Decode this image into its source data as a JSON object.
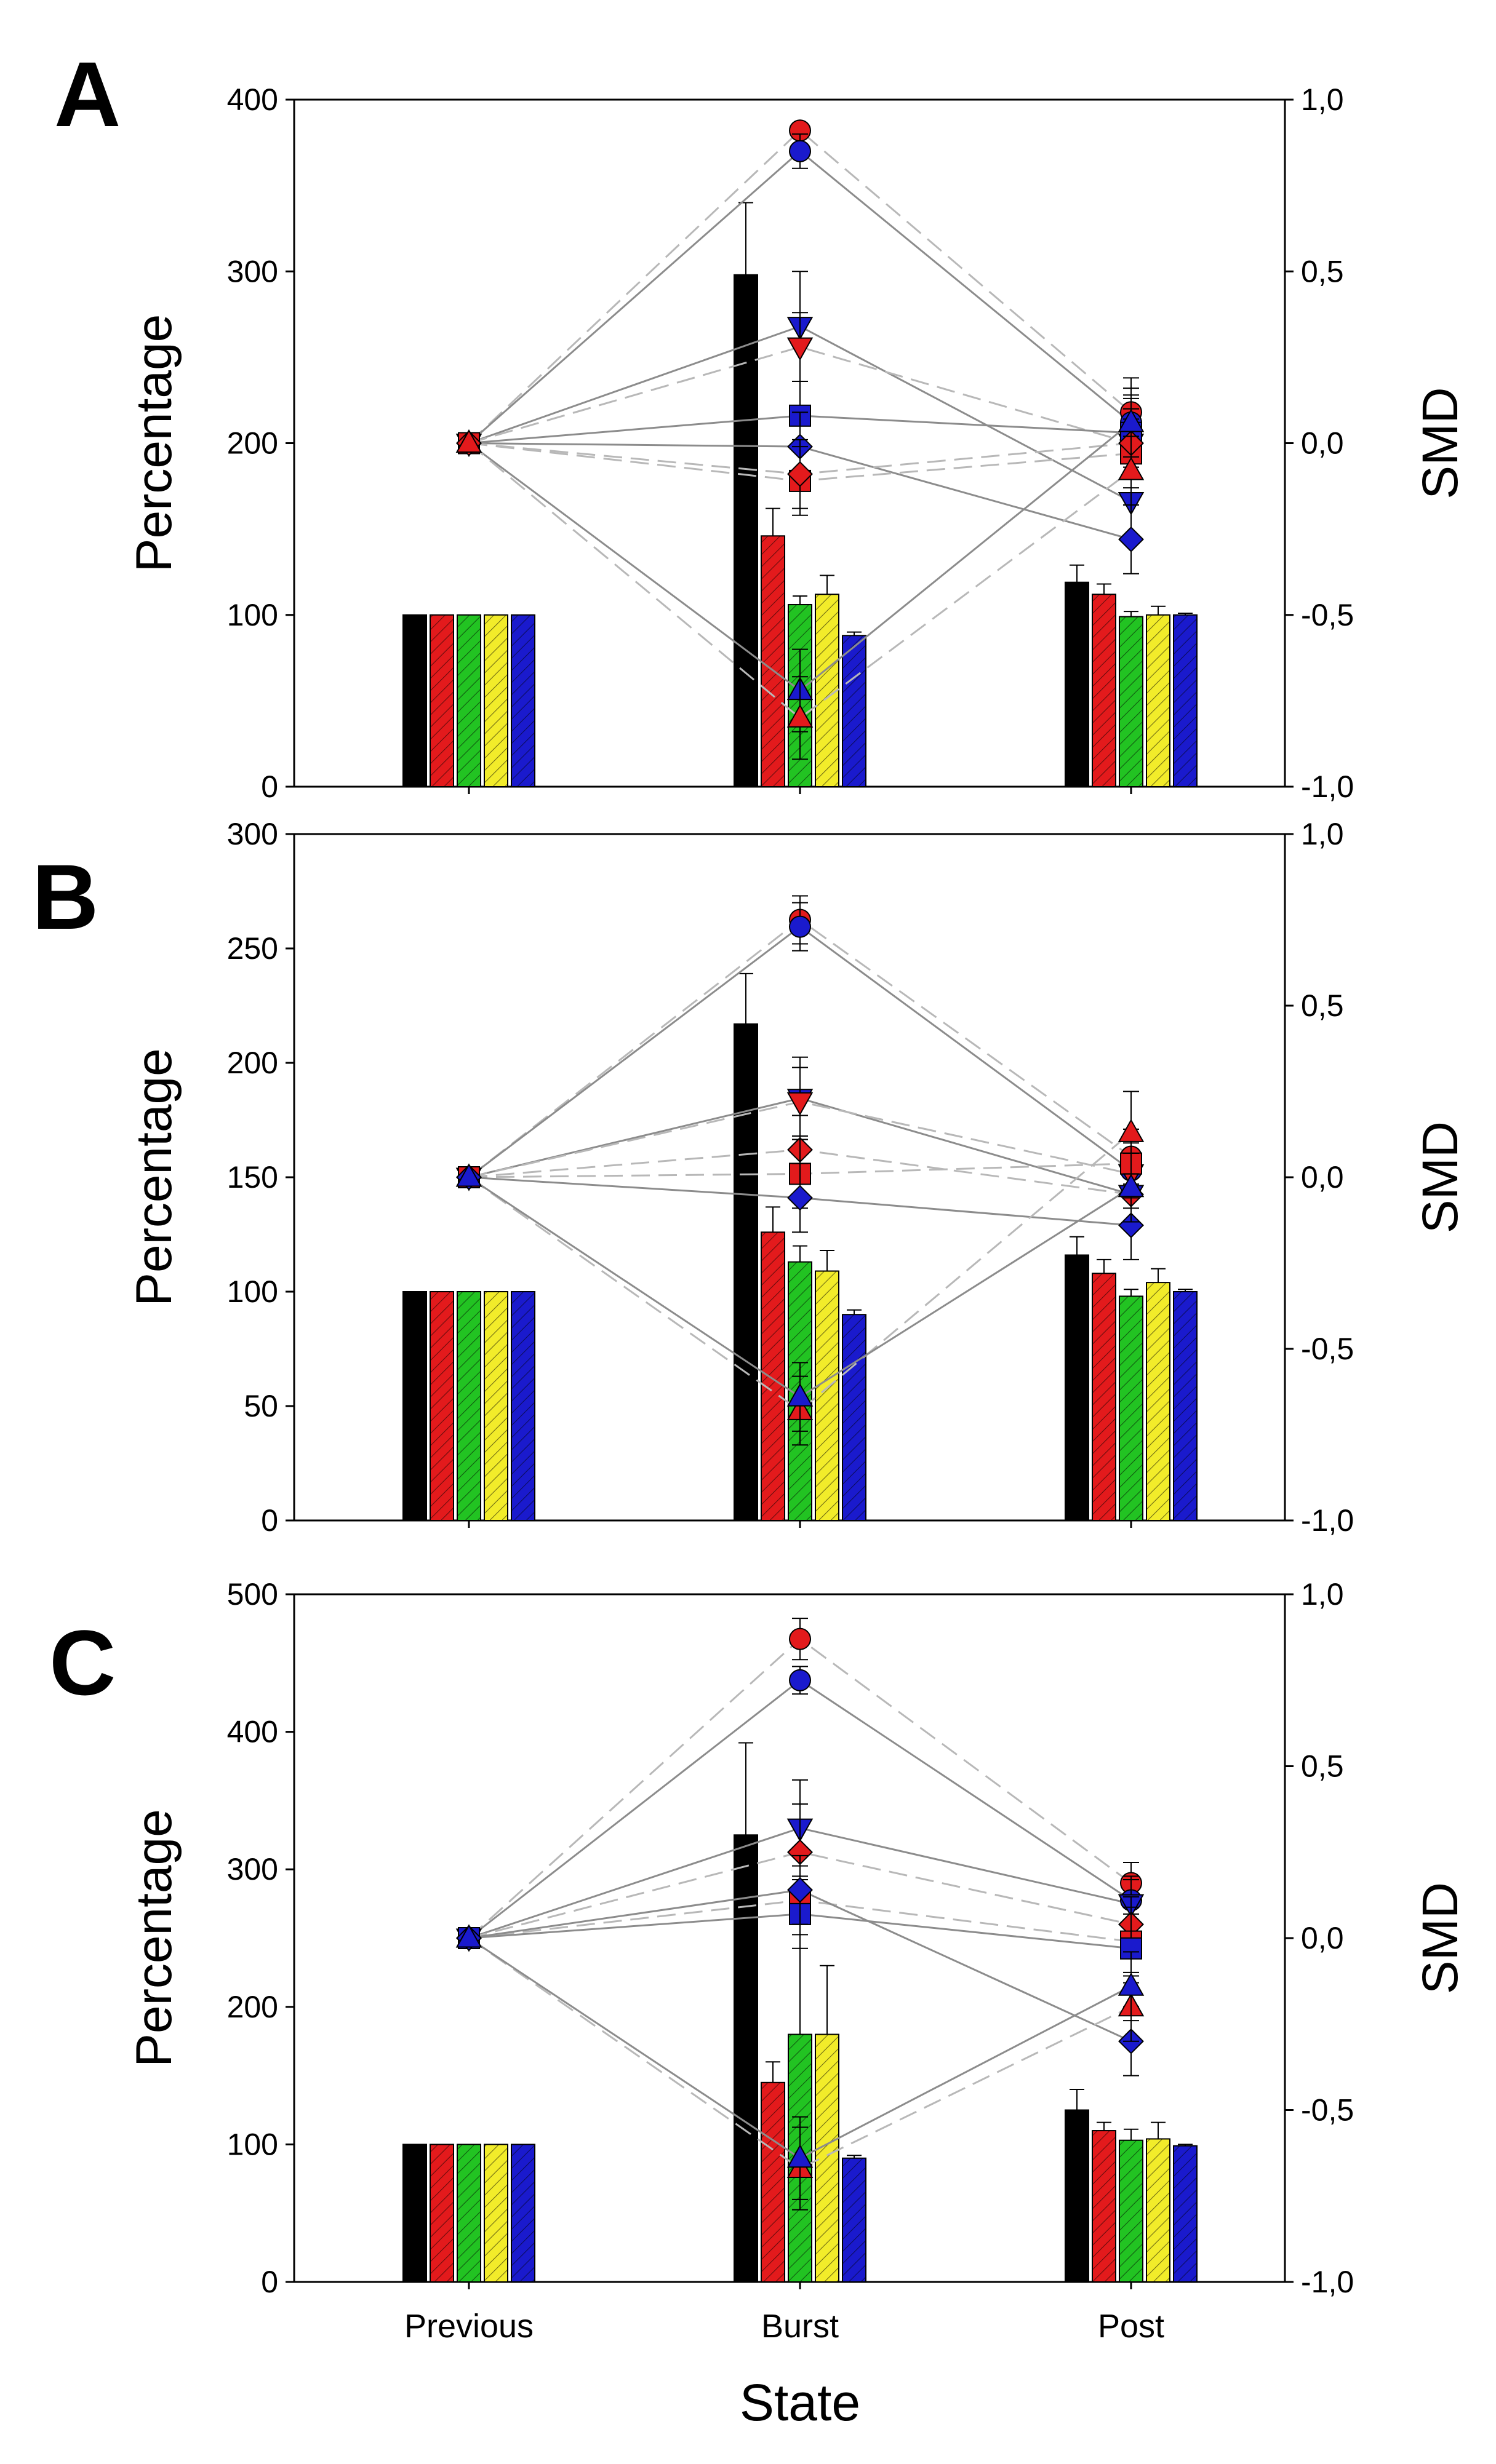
{
  "figure": {
    "x_title": "State",
    "categories": [
      "Previous",
      "Burst",
      "Post"
    ],
    "left_axis_title": "Percentage",
    "right_axis_title": "SMD",
    "bar_colors": [
      "#000000",
      "#e31a1c",
      "#22c322",
      "#f2ec2a",
      "#1a1acd"
    ]
  },
  "chart_data": [
    {
      "type": "bar",
      "panel": "A",
      "categories": [
        "Previous",
        "Burst",
        "Post"
      ],
      "ylabel": "Percentage",
      "ylim": [
        0,
        400
      ],
      "yticks": [
        "0",
        "100",
        "200",
        "300",
        "400"
      ],
      "y2label": "SMD",
      "y2lim": [
        -1.0,
        1.0
      ],
      "y2ticks": [
        "-1,0",
        "-0,5",
        "0,0",
        "0,5",
        "1,0"
      ],
      "series": [
        {
          "color": "#000000",
          "values": [
            100,
            298,
            119
          ],
          "errors": [
            0,
            42,
            10
          ]
        },
        {
          "color": "#e31a1c",
          "values": [
            100,
            146,
            112
          ],
          "errors": [
            0,
            16,
            6
          ]
        },
        {
          "color": "#22c322",
          "values": [
            100,
            106,
            99
          ],
          "errors": [
            0,
            5,
            3
          ]
        },
        {
          "color": "#f2ec2a",
          "values": [
            100,
            112,
            100
          ],
          "errors": [
            0,
            11,
            5
          ]
        },
        {
          "color": "#1a1acd",
          "values": [
            100,
            88,
            100
          ],
          "errors": [
            0,
            2,
            1
          ]
        }
      ],
      "smd_lines": [
        {
          "marker": "circle",
          "color": "#e31a1c",
          "dashed": true,
          "values": [
            0.0,
            0.91,
            0.09
          ],
          "errors": [
            0,
            0.02,
            0.1
          ]
        },
        {
          "marker": "circle",
          "color": "#1a1acd",
          "dashed": false,
          "values": [
            0.0,
            0.85,
            0.06
          ],
          "errors": [
            0,
            0.05,
            0.08
          ]
        },
        {
          "marker": "triangle-down",
          "color": "#1a1acd",
          "dashed": false,
          "values": [
            0.0,
            0.34,
            -0.17
          ],
          "errors": [
            0,
            0.16,
            0.1
          ]
        },
        {
          "marker": "triangle-down",
          "color": "#e31a1c",
          "dashed": true,
          "values": [
            0.0,
            0.28,
            0.0
          ],
          "errors": [
            0,
            0.1,
            0.1
          ]
        },
        {
          "marker": "square",
          "color": "#1a1acd",
          "dashed": false,
          "values": [
            0.0,
            0.08,
            0.03
          ],
          "errors": [
            0,
            0.1,
            0.1
          ]
        },
        {
          "marker": "diamond",
          "color": "#1a1acd",
          "dashed": false,
          "values": [
            0.0,
            -0.01,
            -0.28
          ],
          "errors": [
            0,
            0.1,
            0.1
          ]
        },
        {
          "marker": "square",
          "color": "#e31a1c",
          "dashed": true,
          "values": [
            0.0,
            -0.11,
            -0.03
          ],
          "errors": [
            0,
            0.1,
            0.1
          ]
        },
        {
          "marker": "diamond",
          "color": "#e31a1c",
          "dashed": true,
          "values": [
            0.0,
            -0.09,
            0.0
          ],
          "errors": [
            0,
            0.1,
            0.1
          ]
        },
        {
          "marker": "triangle-up",
          "color": "#1a1acd",
          "dashed": false,
          "values": [
            0.0,
            -0.72,
            0.06
          ],
          "errors": [
            0,
            0.12,
            0.1
          ]
        },
        {
          "marker": "triangle-up",
          "color": "#e31a1c",
          "dashed": true,
          "values": [
            0.0,
            -0.8,
            -0.08
          ],
          "errors": [
            0,
            0.12,
            0.1
          ]
        }
      ]
    },
    {
      "type": "bar",
      "panel": "B",
      "categories": [
        "Previous",
        "Burst",
        "Post"
      ],
      "ylabel": "Percentage",
      "ylim": [
        0,
        300
      ],
      "yticks": [
        "0",
        "50",
        "100",
        "150",
        "200",
        "250",
        "300"
      ],
      "y2label": "SMD",
      "y2lim": [
        -1.0,
        1.0
      ],
      "y2ticks": [
        "-1,0",
        "-0,5",
        "0,0",
        "0,5",
        "1,0"
      ],
      "series": [
        {
          "color": "#000000",
          "values": [
            100,
            217,
            116
          ],
          "errors": [
            0,
            22,
            8
          ]
        },
        {
          "color": "#e31a1c",
          "values": [
            100,
            126,
            108
          ],
          "errors": [
            0,
            11,
            6
          ]
        },
        {
          "color": "#22c322",
          "values": [
            100,
            113,
            98
          ],
          "errors": [
            0,
            7,
            3
          ]
        },
        {
          "color": "#f2ec2a",
          "values": [
            100,
            109,
            104
          ],
          "errors": [
            0,
            9,
            6
          ]
        },
        {
          "color": "#1a1acd",
          "values": [
            100,
            90,
            100
          ],
          "errors": [
            0,
            2,
            1
          ]
        }
      ],
      "smd_lines": [
        {
          "marker": "circle",
          "color": "#e31a1c",
          "dashed": true,
          "values": [
            0.0,
            0.75,
            0.06
          ],
          "errors": [
            0,
            0.07,
            0.08
          ]
        },
        {
          "marker": "circle",
          "color": "#1a1acd",
          "dashed": false,
          "values": [
            0.0,
            0.73,
            0.02
          ],
          "errors": [
            0,
            0.07,
            0.08
          ]
        },
        {
          "marker": "triangle-down",
          "color": "#1a1acd",
          "dashed": false,
          "values": [
            0.0,
            0.23,
            -0.05
          ],
          "errors": [
            0,
            0.12,
            0.1
          ]
        },
        {
          "marker": "triangle-down",
          "color": "#e31a1c",
          "dashed": true,
          "values": [
            0.0,
            0.22,
            0.01
          ],
          "errors": [
            0,
            0.1,
            0.1
          ]
        },
        {
          "marker": "diamond",
          "color": "#e31a1c",
          "dashed": true,
          "values": [
            0.0,
            0.08,
            -0.05
          ],
          "errors": [
            0,
            0.1,
            0.1
          ]
        },
        {
          "marker": "square",
          "color": "#e31a1c",
          "dashed": true,
          "values": [
            0.0,
            0.01,
            0.04
          ],
          "errors": [
            0,
            0.1,
            0.1
          ]
        },
        {
          "marker": "diamond",
          "color": "#1a1acd",
          "dashed": false,
          "values": [
            0.0,
            -0.06,
            -0.14
          ],
          "errors": [
            0,
            0.1,
            0.1
          ]
        },
        {
          "marker": "triangle-up",
          "color": "#e31a1c",
          "dashed": true,
          "values": [
            0.0,
            -0.68,
            0.13
          ],
          "errors": [
            0,
            0.1,
            0.12
          ]
        },
        {
          "marker": "triangle-up",
          "color": "#1a1acd",
          "dashed": false,
          "values": [
            0.0,
            -0.64,
            -0.03
          ],
          "errors": [
            0,
            0.1,
            0.1
          ]
        }
      ]
    },
    {
      "type": "bar",
      "panel": "C",
      "categories": [
        "Previous",
        "Burst",
        "Post"
      ],
      "ylabel": "Percentage",
      "ylim": [
        0,
        500
      ],
      "yticks": [
        "0",
        "100",
        "200",
        "300",
        "400",
        "500"
      ],
      "y2label": "SMD",
      "y2lim": [
        -1.0,
        1.0
      ],
      "y2ticks": [
        "-1,0",
        "-0,5",
        "0,0",
        "0,5",
        "1,0"
      ],
      "series": [
        {
          "color": "#000000",
          "values": [
            100,
            325,
            125
          ],
          "errors": [
            0,
            67,
            15
          ]
        },
        {
          "color": "#e31a1c",
          "values": [
            100,
            145,
            110
          ],
          "errors": [
            0,
            15,
            6
          ]
        },
        {
          "color": "#22c322",
          "values": [
            100,
            180,
            103
          ],
          "errors": [
            0,
            95,
            8
          ]
        },
        {
          "color": "#f2ec2a",
          "values": [
            100,
            180,
            104
          ],
          "errors": [
            0,
            50,
            12
          ]
        },
        {
          "color": "#1a1acd",
          "values": [
            100,
            90,
            99
          ],
          "errors": [
            0,
            2,
            1
          ]
        }
      ],
      "smd_lines": [
        {
          "marker": "circle",
          "color": "#e31a1c",
          "dashed": true,
          "values": [
            0.0,
            0.87,
            0.16
          ],
          "errors": [
            0,
            0.06,
            0.06
          ]
        },
        {
          "marker": "circle",
          "color": "#1a1acd",
          "dashed": false,
          "values": [
            0.0,
            0.75,
            0.11
          ],
          "errors": [
            0,
            0.04,
            0.06
          ]
        },
        {
          "marker": "triangle-down",
          "color": "#1a1acd",
          "dashed": false,
          "values": [
            0.0,
            0.32,
            0.1
          ],
          "errors": [
            0,
            0.14,
            0.08
          ]
        },
        {
          "marker": "diamond",
          "color": "#e31a1c",
          "dashed": true,
          "values": [
            0.0,
            0.25,
            0.04
          ],
          "errors": [
            0,
            0.14,
            0.08
          ]
        },
        {
          "marker": "square",
          "color": "#e31a1c",
          "dashed": true,
          "values": [
            0.0,
            0.11,
            -0.01
          ],
          "errors": [
            0,
            0.1,
            0.1
          ]
        },
        {
          "marker": "square",
          "color": "#1a1acd",
          "dashed": false,
          "values": [
            0.0,
            0.07,
            -0.03
          ],
          "errors": [
            0,
            0.1,
            0.1
          ]
        },
        {
          "marker": "diamond",
          "color": "#1a1acd",
          "dashed": false,
          "values": [
            0.0,
            0.14,
            -0.3
          ],
          "errors": [
            0,
            0.1,
            0.1
          ]
        },
        {
          "marker": "triangle-up",
          "color": "#e31a1c",
          "dashed": true,
          "values": [
            0.0,
            -0.67,
            -0.2
          ],
          "errors": [
            0,
            0.12,
            0.1
          ]
        },
        {
          "marker": "triangle-up",
          "color": "#1a1acd",
          "dashed": false,
          "values": [
            0.0,
            -0.64,
            -0.14
          ],
          "errors": [
            0,
            0.12,
            0.1
          ]
        }
      ]
    }
  ]
}
